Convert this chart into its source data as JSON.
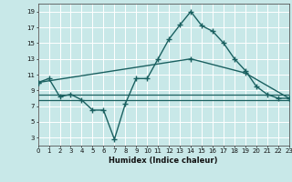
{
  "xlabel": "Humidex (Indice chaleur)",
  "bg_color": "#c8e8e8",
  "grid_color": "#b0d8d8",
  "line_color": "#1a6060",
  "xlim": [
    0,
    23
  ],
  "ylim": [
    2,
    20
  ],
  "xticks": [
    0,
    1,
    2,
    3,
    4,
    5,
    6,
    7,
    8,
    9,
    10,
    11,
    12,
    13,
    14,
    15,
    16,
    17,
    18,
    19,
    20,
    21,
    22,
    23
  ],
  "yticks": [
    3,
    5,
    7,
    9,
    11,
    13,
    15,
    17,
    19
  ],
  "series": [
    {
      "x": [
        0,
        1,
        2,
        3,
        4,
        5,
        6,
        7,
        8,
        9,
        10,
        11,
        12,
        13,
        14,
        15,
        16,
        17,
        18,
        19,
        20,
        21,
        22,
        23
      ],
      "y": [
        10.0,
        10.5,
        8.2,
        8.5,
        7.8,
        6.5,
        6.5,
        2.8,
        7.3,
        10.5,
        10.5,
        13.0,
        15.5,
        17.3,
        19.0,
        17.2,
        16.5,
        15.0,
        13.0,
        11.5,
        9.5,
        8.5,
        8.0,
        8.0
      ],
      "marker": true,
      "linewidth": 1.0
    },
    {
      "x": [
        0,
        14,
        19,
        23
      ],
      "y": [
        10.0,
        13.0,
        11.2,
        8.0
      ],
      "marker": true,
      "linewidth": 1.0
    },
    {
      "x": [
        0,
        23
      ],
      "y": [
        8.5,
        8.5
      ],
      "marker": false,
      "linewidth": 0.9
    },
    {
      "x": [
        0,
        23
      ],
      "y": [
        7.8,
        7.8
      ],
      "marker": false,
      "linewidth": 0.9
    }
  ]
}
